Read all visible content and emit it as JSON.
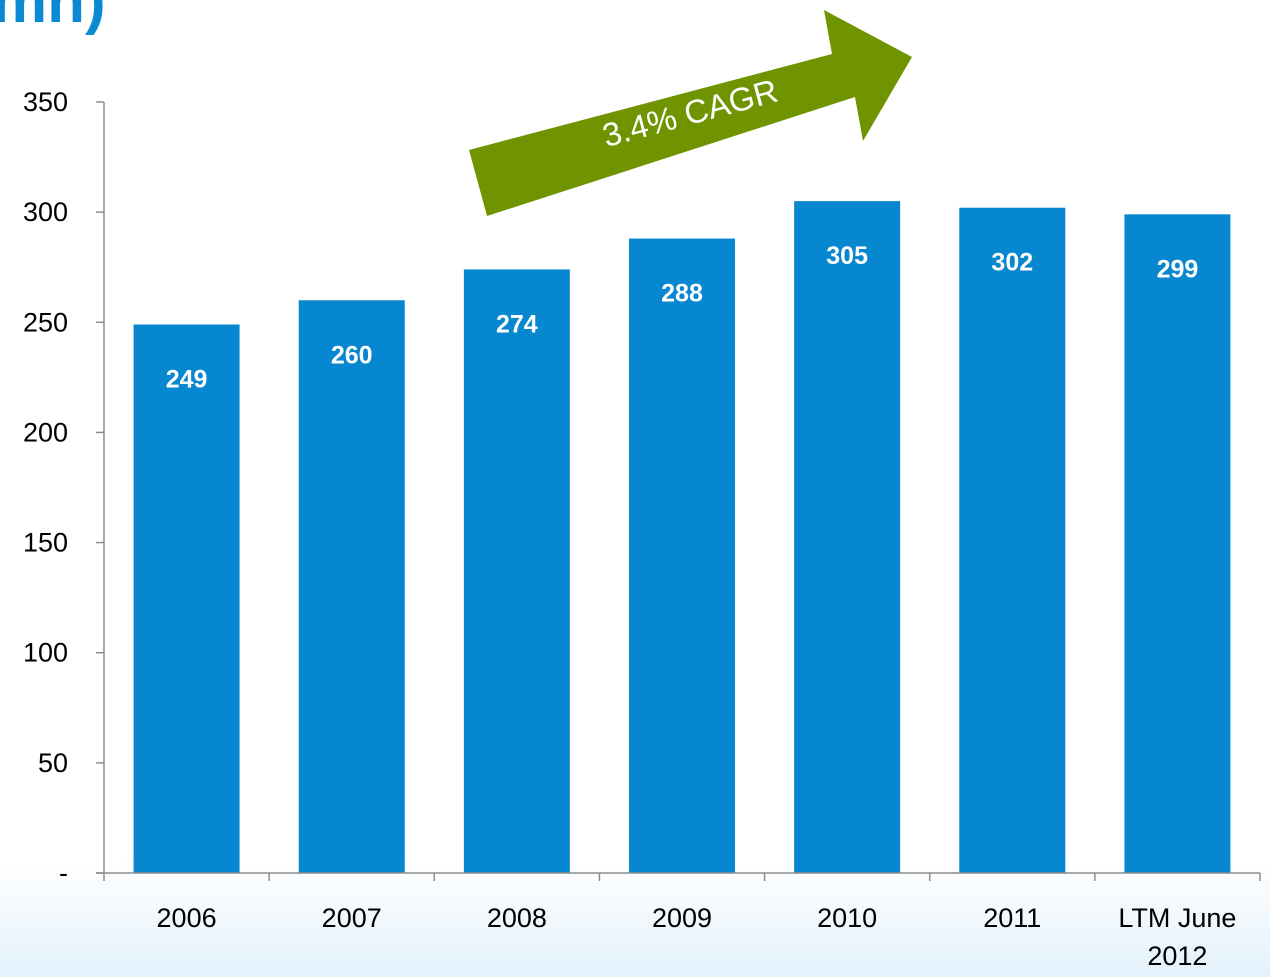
{
  "title_fragment": "mn)",
  "chart_data": {
    "type": "bar",
    "categories": [
      "2006",
      "2007",
      "2008",
      "2009",
      "2010",
      "2011",
      "LTM June 2012"
    ],
    "category_lines": [
      [
        "2006"
      ],
      [
        "2007"
      ],
      [
        "2008"
      ],
      [
        "2009"
      ],
      [
        "2010"
      ],
      [
        "2011"
      ],
      [
        "LTM June",
        "2012"
      ]
    ],
    "values": [
      249,
      260,
      274,
      288,
      305,
      302,
      299
    ],
    "data_labels": [
      "249",
      "260",
      "274",
      "288",
      "305",
      "302",
      "299"
    ],
    "y_ticks": [
      0,
      50,
      100,
      150,
      200,
      250,
      300,
      350
    ],
    "y_tick_labels": [
      "-",
      "50",
      "100",
      "150",
      "200",
      "250",
      "300",
      "350"
    ],
    "ylim": [
      0,
      350
    ],
    "grid": false,
    "legend": "none",
    "annotation": "3.4% CAGR",
    "colors": {
      "bar": "#0787d0",
      "arrow": "#6f9400",
      "title": "#0a8ad2",
      "axis": "#8c8c8c"
    }
  }
}
